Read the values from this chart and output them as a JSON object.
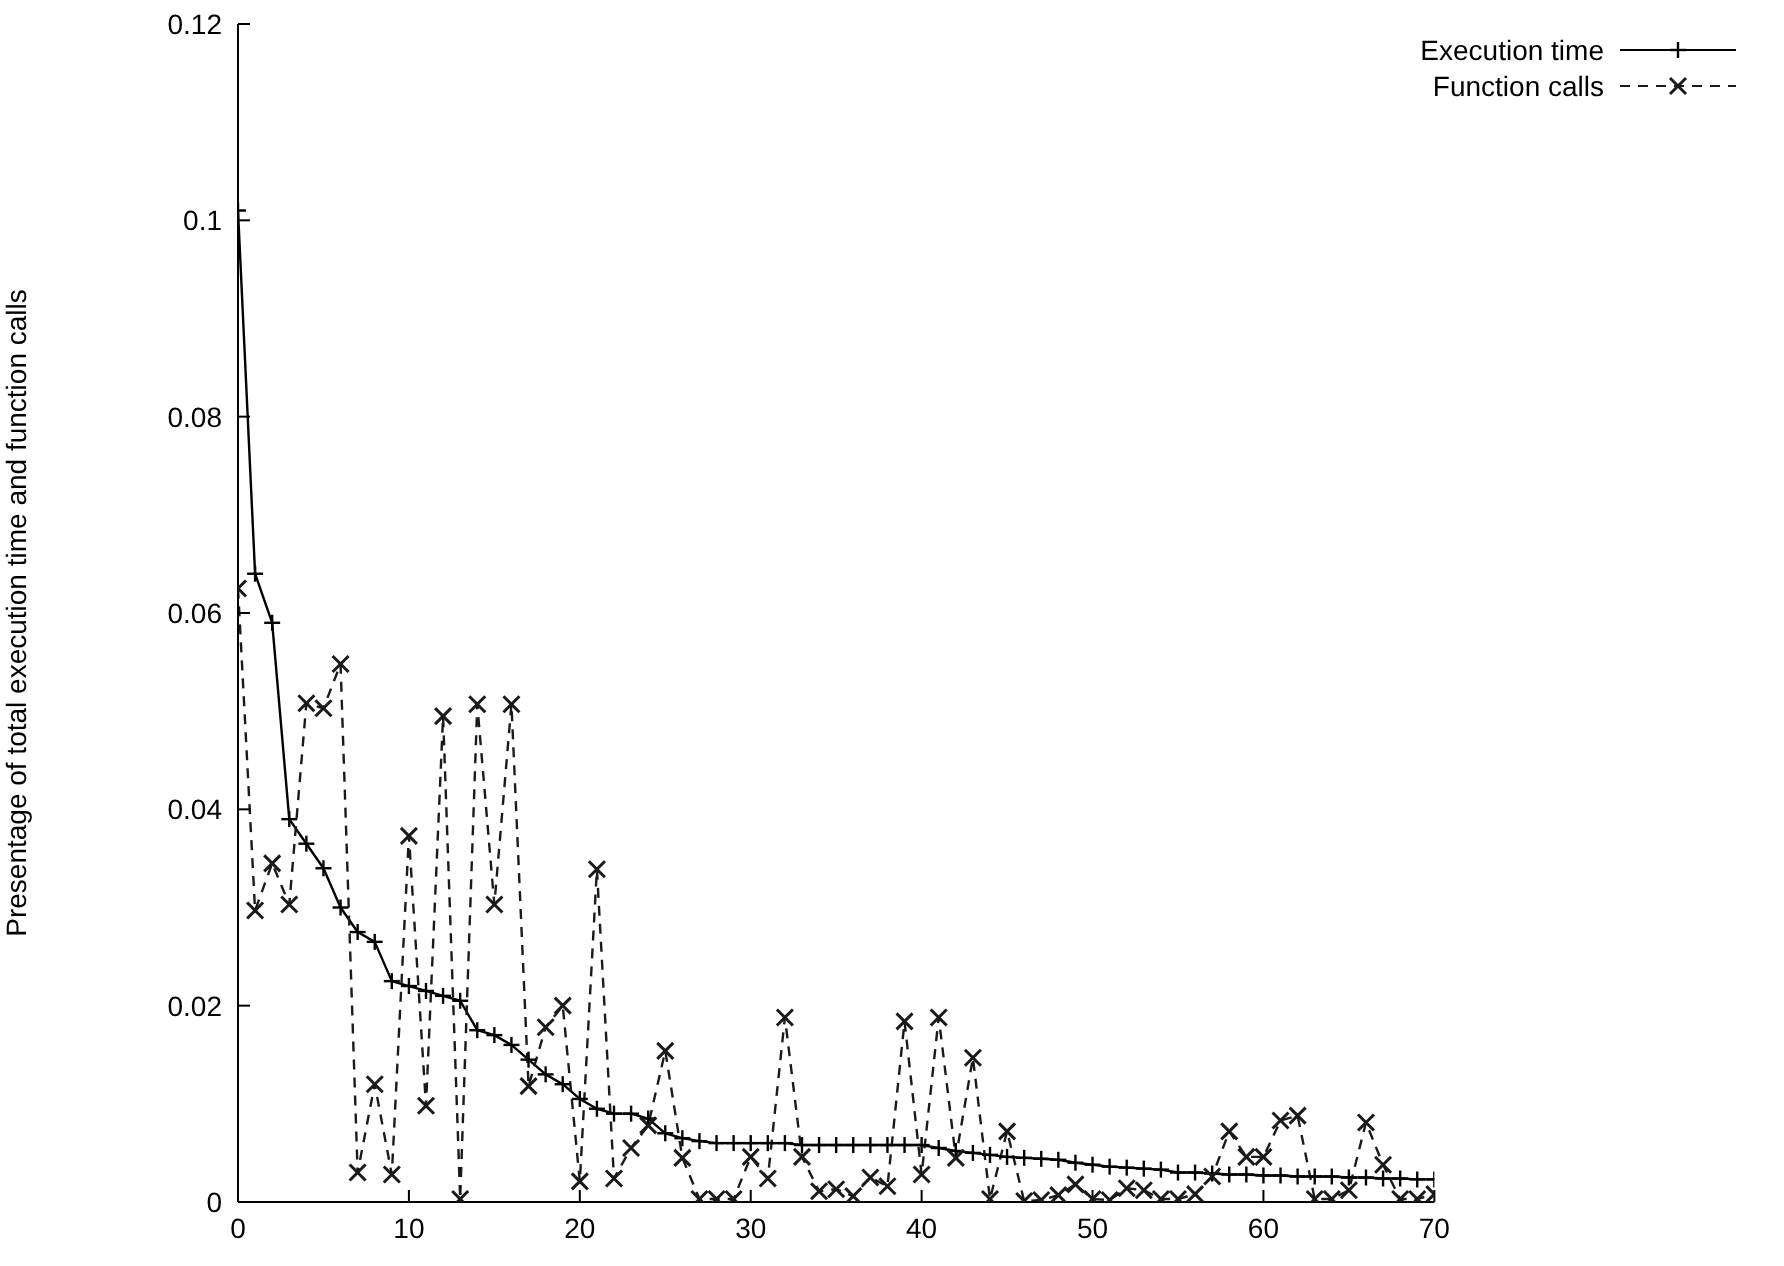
{
  "chart_data": {
    "type": "line",
    "ylabel": "Presentage of total execution time and function calls",
    "x": [
      0,
      1,
      2,
      3,
      4,
      5,
      6,
      7,
      8,
      9,
      10,
      11,
      12,
      13,
      14,
      15,
      16,
      17,
      18,
      19,
      20,
      21,
      22,
      23,
      24,
      25,
      26,
      27,
      28,
      29,
      30,
      31,
      32,
      33,
      34,
      35,
      36,
      37,
      38,
      39,
      40,
      41,
      42,
      43,
      44,
      45,
      46,
      47,
      48,
      49,
      50,
      51,
      52,
      53,
      54,
      55,
      56,
      57,
      58,
      59,
      60,
      61,
      62,
      63,
      64,
      65,
      66,
      67,
      68,
      69,
      70
    ],
    "series": [
      {
        "name": "Execution time",
        "color": "#000000",
        "marker": "plus",
        "line_style": "solid",
        "values": [
          0.101,
          0.064,
          0.059,
          0.039,
          0.0365,
          0.034,
          0.03,
          0.0275,
          0.0265,
          0.0225,
          0.022,
          0.0215,
          0.021,
          0.0205,
          0.0175,
          0.017,
          0.016,
          0.0145,
          0.013,
          0.012,
          0.0105,
          0.0095,
          0.009,
          0.009,
          0.0085,
          0.007,
          0.0065,
          0.0062,
          0.006,
          0.006,
          0.006,
          0.006,
          0.006,
          0.0058,
          0.0058,
          0.0058,
          0.0058,
          0.0058,
          0.0058,
          0.0058,
          0.0058,
          0.0055,
          0.0052,
          0.005,
          0.0048,
          0.0046,
          0.0045,
          0.0044,
          0.0043,
          0.004,
          0.0038,
          0.0036,
          0.0035,
          0.0034,
          0.0033,
          0.003,
          0.003,
          0.0029,
          0.0028,
          0.0028,
          0.0027,
          0.0027,
          0.0026,
          0.0026,
          0.0026,
          0.0025,
          0.0025,
          0.0024,
          0.0024,
          0.0023,
          0.0023
        ]
      },
      {
        "name": "Function calls",
        "color": "#1a1a1a",
        "marker": "cross",
        "line_style": "dashed",
        "values": [
          0.0625,
          0.0297,
          0.0345,
          0.0303,
          0.0508,
          0.0503,
          0.0548,
          0.003,
          0.012,
          0.0028,
          0.0373,
          0.0098,
          0.0495,
          0.0003,
          0.0507,
          0.0303,
          0.0507,
          0.0118,
          0.0178,
          0.02,
          0.0021,
          0.0339,
          0.0024,
          0.0055,
          0.0078,
          0.0154,
          0.0045,
          0.0003,
          0.0003,
          0.0003,
          0.0046,
          0.0024,
          0.0188,
          0.0046,
          0.0011,
          0.0013,
          0.0006,
          0.0025,
          0.0016,
          0.0184,
          0.0028,
          0.0188,
          0.0045,
          0.0147,
          0.0003,
          0.0072,
          0.0001,
          0.0002,
          0.0007,
          0.0018,
          0.0003,
          0.0002,
          0.0014,
          0.0012,
          0.0003,
          0.0003,
          0.0008,
          0.0026,
          0.0072,
          0.0046,
          0.0046,
          0.0083,
          0.0088,
          0.0003,
          0.0003,
          0.0012,
          0.0081,
          0.0038,
          0.0003,
          0.0003,
          0.0008
        ]
      }
    ],
    "xlim": [
      0,
      70
    ],
    "xticks": [
      0,
      10,
      20,
      30,
      40,
      50,
      60,
      70
    ],
    "ylim": [
      0,
      0.12
    ],
    "yticks": [
      0,
      0.02,
      0.04,
      0.06,
      0.08,
      0.1,
      0.12
    ],
    "grid": false,
    "legend": "top right"
  }
}
